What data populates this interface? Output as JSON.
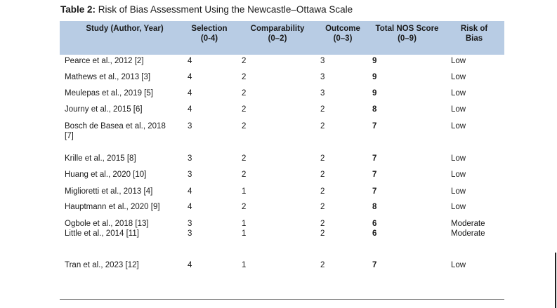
{
  "caption": {
    "label": "Table 2:",
    "text": " Risk of Bias Assessment Using the Newcastle–Ottawa Scale"
  },
  "headers": {
    "study": "Study (Author, Year)",
    "selection": [
      "Selection",
      "(0-4)"
    ],
    "comparability": [
      "Comparability",
      "(0–2)"
    ],
    "outcome": [
      "Outcome",
      "(0–3)"
    ],
    "nos": [
      "Total NOS Score",
      "(0–9)"
    ],
    "risk": [
      "Risk of",
      "Bias"
    ]
  },
  "rows": [
    {
      "study": "Pearce et al., 2012 [2]",
      "selection": "4",
      "comparability": "2",
      "outcome": "3",
      "nos": "9",
      "risk": "Low"
    },
    {
      "study": "Mathews et al., 2013 [3]",
      "selection": "4",
      "comparability": "2",
      "outcome": "3",
      "nos": "9",
      "risk": "Low"
    },
    {
      "study": "Meulepas et al., 2019 [5]",
      "selection": "4",
      "comparability": "2",
      "outcome": "3",
      "nos": "9",
      "risk": "Low"
    },
    {
      "study": "Journy et al., 2015 [6]",
      "selection": "4",
      "comparability": "2",
      "outcome": "2",
      "nos": "8",
      "risk": "Low"
    },
    {
      "study": "Bosch de Basea et al., 2018 [7]",
      "selection": "3",
      "comparability": "2",
      "outcome": "2",
      "nos": "7",
      "risk": "Low"
    },
    {
      "study": "Krille et al., 2015 [8]",
      "selection": "3",
      "comparability": "2",
      "outcome": "2",
      "nos": "7",
      "risk": "Low"
    },
    {
      "study": "Huang et al., 2020 [10]",
      "selection": "3",
      "comparability": "2",
      "outcome": "2",
      "nos": "7",
      "risk": "Low"
    },
    {
      "study": "Miglioretti et al., 2013 [4]",
      "selection": "4",
      "comparability": "1",
      "outcome": "2",
      "nos": "7",
      "risk": "Low"
    },
    {
      "study": "Hauptmann et al., 2020 [9]",
      "selection": "4",
      "comparability": "2",
      "outcome": "2",
      "nos": "8",
      "risk": "Low"
    },
    {
      "study": "Ogbole et al., 2018 [13]",
      "selection": "3",
      "comparability": "1",
      "outcome": "2",
      "nos": "6",
      "risk": "Moderate"
    },
    {
      "study": "Little et al., 2014 [11]",
      "selection": "3",
      "comparability": "1",
      "outcome": "2",
      "nos": "6",
      "risk": "Moderate"
    },
    {
      "study": "Tran et al., 2023 [12]",
      "selection": "4",
      "comparability": "1",
      "outcome": "2",
      "nos": "7",
      "risk": "Low"
    }
  ]
}
